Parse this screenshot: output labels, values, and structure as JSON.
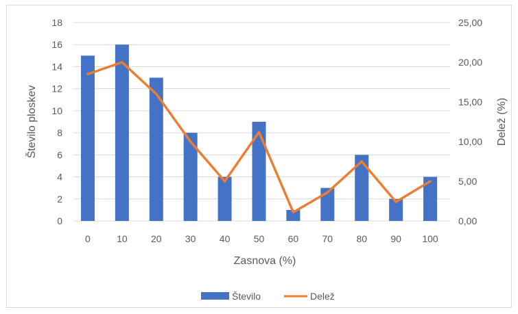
{
  "chart_data": {
    "type": "bar",
    "categories": [
      "0",
      "10",
      "20",
      "30",
      "40",
      "50",
      "60",
      "70",
      "80",
      "90",
      "100"
    ],
    "series": [
      {
        "name": "Število",
        "type": "bar",
        "axis": "left",
        "color": "#4472c4",
        "values": [
          15,
          16,
          13,
          8,
          4,
          9,
          1,
          3,
          6,
          2,
          4
        ]
      },
      {
        "name": "Delež",
        "type": "line",
        "axis": "right",
        "color": "#ed7d31",
        "values": [
          18.5,
          20.0,
          16.0,
          10.0,
          5.0,
          11.2,
          1.1,
          3.6,
          7.5,
          2.4,
          5.0
        ]
      }
    ],
    "xlabel": "Zasnova (%)",
    "ylabel": "Število ploskev",
    "y2label": "Delež (%)",
    "ylim": [
      0,
      18
    ],
    "yticks": [
      "0",
      "2",
      "4",
      "6",
      "8",
      "10",
      "12",
      "14",
      "16",
      "18"
    ],
    "y2lim": [
      0,
      25
    ],
    "y2ticks": [
      "0,00",
      "5,00",
      "10,00",
      "15,00",
      "20,00",
      "25,00"
    ],
    "grid": true,
    "legend": "bottom"
  }
}
